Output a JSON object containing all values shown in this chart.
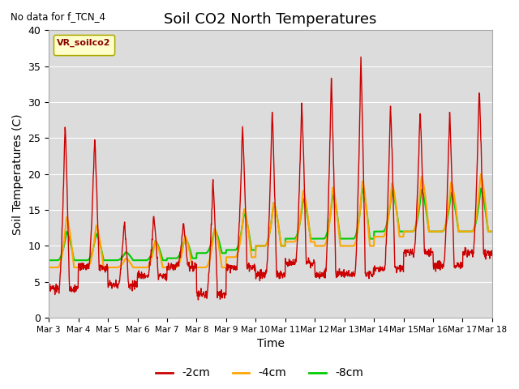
{
  "title": "Soil CO2 North Temperatures",
  "subtitle": "No data for f_TCN_4",
  "xlabel": "Time",
  "ylabel": "Soil Temperatures (C)",
  "ylim": [
    0,
    40
  ],
  "xlim": [
    0,
    15
  ],
  "xtick_labels": [
    "Mar 3",
    "Mar 4",
    "Mar 5",
    "Mar 6",
    "Mar 7",
    "Mar 8",
    "Mar 9",
    "Mar 10",
    "Mar 11",
    "Mar 12",
    "Mar 13",
    "Mar 14",
    "Mar 15",
    "Mar 16",
    "Mar 17",
    "Mar 18"
  ],
  "line_colors": {
    "m2cm": "#CC0000",
    "m4cm": "#FFA500",
    "m8cm": "#00CC00"
  },
  "line_labels": [
    "-2cm",
    "-4cm",
    "-8cm"
  ],
  "background_color": "#DCDCDC",
  "title_fontsize": 13,
  "axis_fontsize": 10,
  "legend_fontsize": 10,
  "peaks_2cm": [
    27,
    21,
    28,
    14,
    10,
    16,
    10,
    21,
    19,
    28,
    25,
    29,
    26,
    33,
    34,
    31,
    38,
    30,
    28,
    29,
    28,
    30,
    32
  ],
  "mins_2cm": [
    4,
    7,
    7,
    4,
    8,
    5,
    8,
    5,
    3,
    5,
    10,
    6,
    10,
    6,
    6,
    6,
    6,
    6,
    9,
    9,
    6,
    9,
    9
  ],
  "peaks_4cm": [
    14,
    10,
    15,
    8,
    10,
    11,
    10,
    15,
    12,
    16,
    14,
    16,
    16,
    19,
    18,
    19,
    19,
    19,
    18,
    20,
    18,
    20,
    20
  ],
  "mins_4cm": [
    7,
    7,
    7,
    7,
    7,
    7,
    7,
    7,
    7,
    8,
    9,
    10,
    10,
    11,
    10,
    10,
    10,
    11,
    12,
    12,
    12,
    12,
    12
  ],
  "peaks_8cm": [
    12,
    10,
    13,
    9,
    10,
    11,
    10,
    14,
    12,
    15,
    14,
    16,
    16,
    17,
    17,
    18,
    18,
    18,
    17,
    18,
    17,
    18,
    18
  ],
  "mins_8cm": [
    8,
    8,
    8,
    8,
    8,
    8,
    8,
    9,
    9,
    9,
    10,
    10,
    11,
    11,
    11,
    11,
    11,
    12,
    12,
    12,
    12,
    12,
    12
  ]
}
